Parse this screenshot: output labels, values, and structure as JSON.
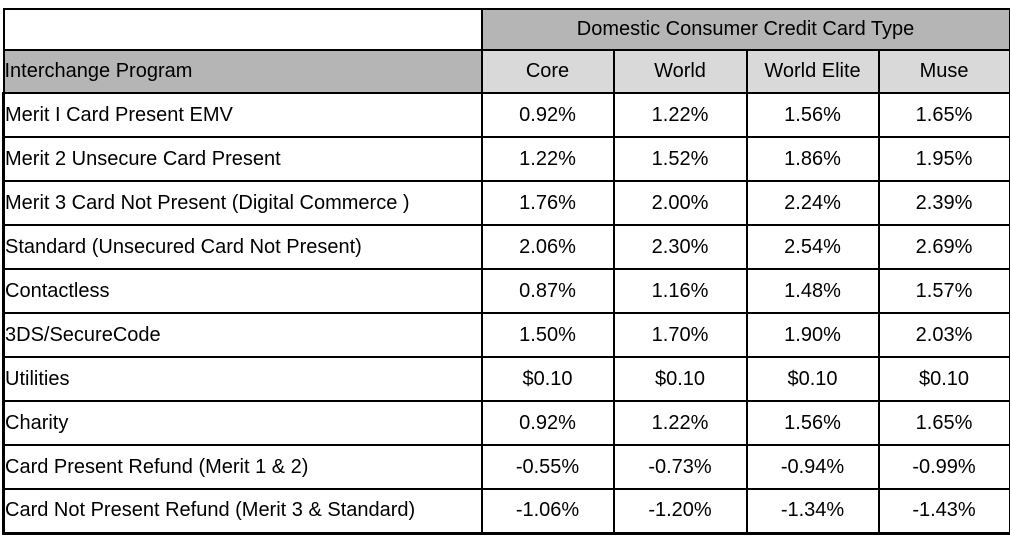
{
  "chart_data": {
    "type": "table",
    "title": "Domestic Consumer Credit Card Type",
    "col_header": "Interchange Program",
    "columns": [
      "Core",
      "World",
      "World Elite",
      "Muse"
    ],
    "rows": [
      {
        "program": "Merit I Card Present EMV",
        "values": [
          "0.92%",
          "1.22%",
          "1.56%",
          "1.65%"
        ]
      },
      {
        "program": "Merit 2 Unsecure Card Present",
        "values": [
          "1.22%",
          "1.52%",
          "1.86%",
          "1.95%"
        ]
      },
      {
        "program": "Merit 3 Card Not Present (Digital Commerce )",
        "values": [
          "1.76%",
          "2.00%",
          "2.24%",
          "2.39%"
        ]
      },
      {
        "program": "Standard (Unsecured Card Not Present)",
        "values": [
          "2.06%",
          "2.30%",
          "2.54%",
          "2.69%"
        ]
      },
      {
        "program": "Contactless",
        "values": [
          "0.87%",
          "1.16%",
          "1.48%",
          "1.57%"
        ]
      },
      {
        "program": "3DS/SecureCode",
        "values": [
          "1.50%",
          "1.70%",
          "1.90%",
          "2.03%"
        ]
      },
      {
        "program": "Utilities",
        "values": [
          "$0.10",
          "$0.10",
          "$0.10",
          "$0.10"
        ]
      },
      {
        "program": "Charity",
        "values": [
          "0.92%",
          "1.22%",
          "1.56%",
          "1.65%"
        ]
      },
      {
        "program": "Card Present Refund (Merit 1 & 2)",
        "values": [
          "-0.55%",
          "-0.73%",
          "-0.94%",
          "-0.99%"
        ]
      },
      {
        "program": "Card Not Present Refund (Merit 3 & Standard)",
        "values": [
          "-1.06%",
          "-1.20%",
          "-1.34%",
          "-1.43%"
        ]
      }
    ],
    "layout": {
      "grid": "on",
      "value_alignment": "center",
      "program_alignment": "left"
    },
    "colors": {
      "header_dark": "#b5b5b5",
      "header_light": "#d9d9d9",
      "border": "#000000",
      "cell_background": "#ffffff",
      "text": "#000000"
    }
  }
}
